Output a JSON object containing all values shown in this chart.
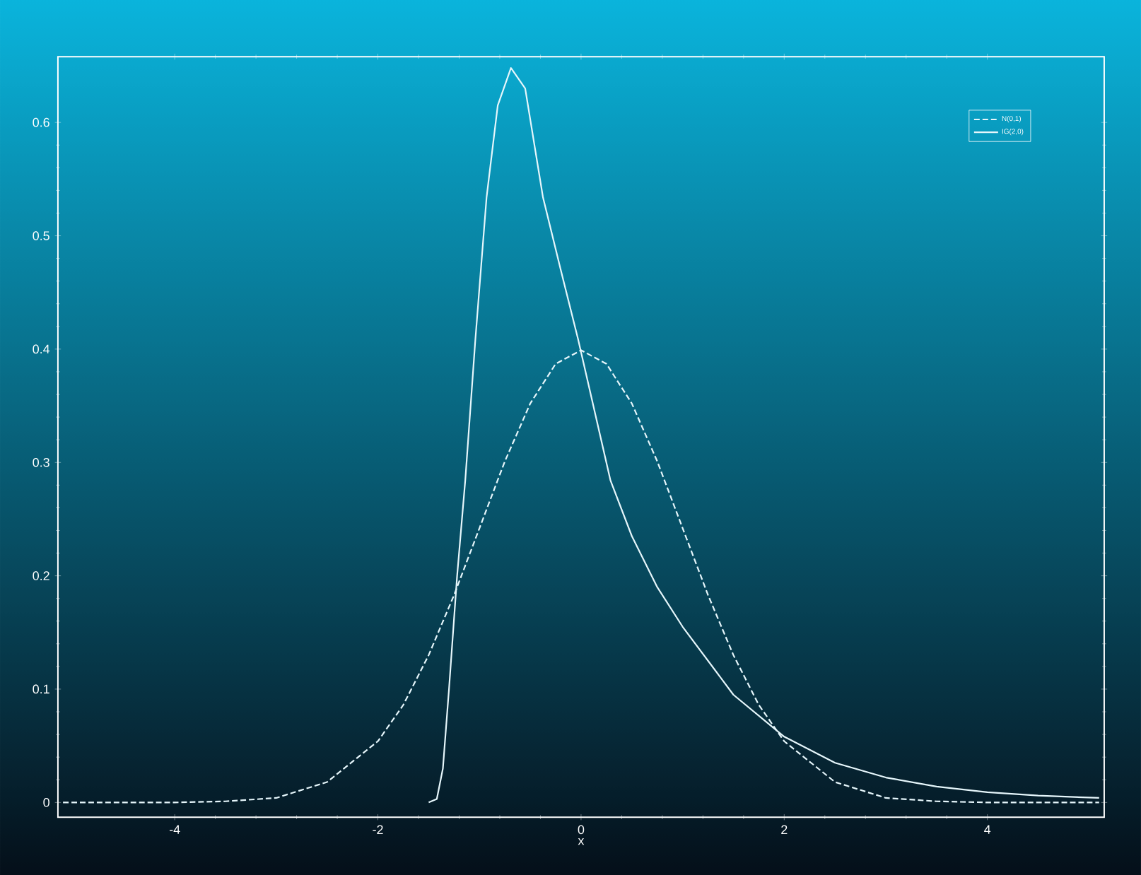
{
  "chart_data": {
    "type": "line",
    "xlabel": "x",
    "xlim": [
      -5.15,
      5.15
    ],
    "ylim": [
      -0.013,
      0.658
    ],
    "xticks": [
      -4,
      -2,
      0,
      2,
      4
    ],
    "yticks": [
      0,
      0.1,
      0.2,
      0.3,
      0.4,
      0.5,
      0.6
    ],
    "legend": "top right",
    "marker": "none",
    "grid": false,
    "series": [
      {
        "name": "N(0,1)",
        "color": "#e6f6fb",
        "line_style": "dashed",
        "x": [
          -5.1,
          -4.5,
          -4,
          -3.5,
          -3,
          -2.5,
          -2,
          -1.75,
          -1.5,
          -1.25,
          -1,
          -0.75,
          -0.5,
          -0.25,
          0,
          0.25,
          0.5,
          0.75,
          1,
          1.25,
          1.5,
          1.75,
          2,
          2.5,
          3,
          3.5,
          4,
          4.5,
          5.1
        ],
        "values": [
          0,
          0,
          0,
          0.001,
          0.004,
          0.018,
          0.054,
          0.086,
          0.13,
          0.183,
          0.242,
          0.301,
          0.352,
          0.387,
          0.399,
          0.387,
          0.352,
          0.301,
          0.242,
          0.183,
          0.13,
          0.086,
          0.054,
          0.018,
          0.004,
          0.001,
          0,
          0,
          0
        ]
      },
      {
        "name": "IG(2,0)",
        "color": "#e6f6fb",
        "line_style": "solid",
        "x": [
          -1.5,
          -1.42,
          -1.36,
          -1.3,
          -1.22,
          -1.14,
          -1.04,
          -0.93,
          -0.82,
          -0.69,
          -0.55,
          -0.375,
          -0.2,
          -0.03,
          0.29,
          0.5,
          0.75,
          1,
          1.5,
          2,
          2.5,
          3,
          3.5,
          4,
          4.5,
          5.1
        ],
        "values": [
          0,
          0.003,
          0.03,
          0.1,
          0.2,
          0.284,
          0.409,
          0.534,
          0.615,
          0.648,
          0.63,
          0.534,
          0.47,
          0.409,
          0.284,
          0.235,
          0.19,
          0.155,
          0.095,
          0.058,
          0.035,
          0.022,
          0.014,
          0.009,
          0.006,
          0.004
        ]
      }
    ]
  }
}
